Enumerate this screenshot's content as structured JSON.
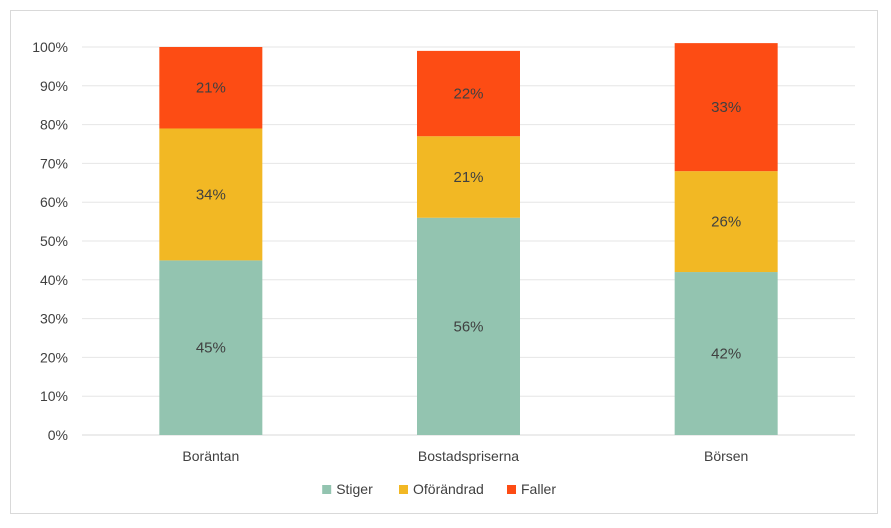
{
  "chart_data": {
    "type": "bar",
    "stacked": true,
    "categories": [
      "Boräntan",
      "Bostadspriserna",
      "Börsen"
    ],
    "series": [
      {
        "name": "Stiger",
        "values": [
          45,
          56,
          42
        ],
        "labels": [
          "45%",
          "56%",
          "42%"
        ],
        "color": "#93c4b0"
      },
      {
        "name": "Oförändrad",
        "values": [
          34,
          21,
          26
        ],
        "labels": [
          "34%",
          "21%",
          "26%"
        ],
        "color": "#f2b824"
      },
      {
        "name": "Faller",
        "values": [
          21,
          22,
          33
        ],
        "labels": [
          "21%",
          "22%",
          "33%"
        ],
        "color": "#fd4c14"
      }
    ],
    "ylim": [
      0,
      100
    ],
    "yticks": [
      "0%",
      "10%",
      "20%",
      "30%",
      "40%",
      "50%",
      "60%",
      "70%",
      "80%",
      "90%",
      "100%"
    ],
    "grid": true,
    "legend_position": "bottom",
    "title": "",
    "xlabel": "",
    "ylabel": ""
  }
}
